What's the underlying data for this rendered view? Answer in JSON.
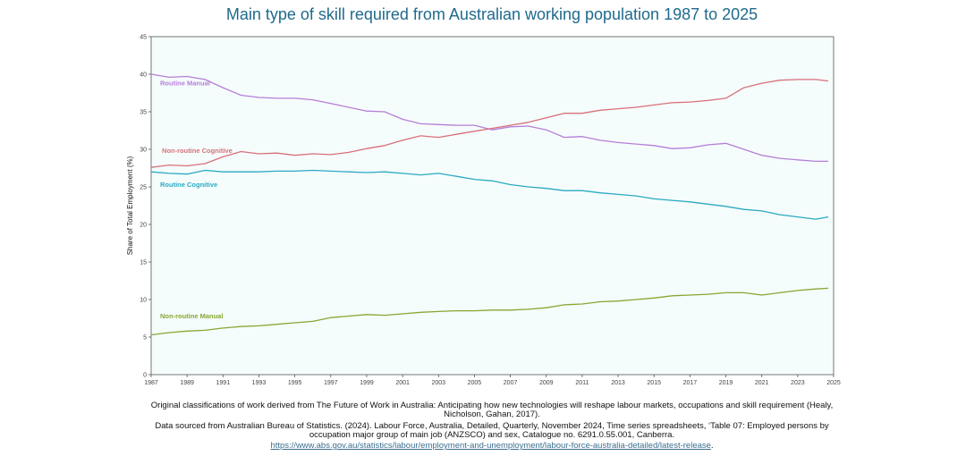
{
  "chart_data": {
    "type": "line",
    "title": "Main type of skill required from Australian working population 1987 to 2025",
    "xlabel": "",
    "ylabel": "Share of Total Employment (%)",
    "xlim": [
      1987,
      2025
    ],
    "ylim": [
      0,
      45
    ],
    "xticks": [
      "1987",
      "1989",
      "1991",
      "1993",
      "1995",
      "1997",
      "1999",
      "2001",
      "2003",
      "2005",
      "2007",
      "2009",
      "2011",
      "2013",
      "2015",
      "2017",
      "2019",
      "2021",
      "2023",
      "2025"
    ],
    "yticks": [
      "0",
      "5",
      "10",
      "15",
      "20",
      "25",
      "30",
      "35",
      "40",
      "45"
    ],
    "x": [
      1987,
      1988,
      1989,
      1990,
      1991,
      1992,
      1993,
      1994,
      1995,
      1996,
      1997,
      1998,
      1999,
      2000,
      2001,
      2002,
      2003,
      2004,
      2005,
      2006,
      2007,
      2008,
      2009,
      2010,
      2011,
      2012,
      2013,
      2014,
      2015,
      2016,
      2017,
      2018,
      2019,
      2020,
      2021,
      2022,
      2023,
      2024,
      2024.7
    ],
    "series": [
      {
        "name": "Routine Manual",
        "color": "#b57fd6",
        "values": [
          40.0,
          39.6,
          39.7,
          39.3,
          38.2,
          37.2,
          36.9,
          36.8,
          36.8,
          36.6,
          36.1,
          35.6,
          35.1,
          35.0,
          34.0,
          33.4,
          33.3,
          33.2,
          33.2,
          32.6,
          33.0,
          33.1,
          32.6,
          31.6,
          31.7,
          31.2,
          30.9,
          30.7,
          30.5,
          30.1,
          30.2,
          30.6,
          30.8,
          30.0,
          29.2,
          28.8,
          28.6,
          28.4,
          28.4
        ]
      },
      {
        "name": "Non-routine Cognitive",
        "color": "#d9707a",
        "values": [
          27.6,
          27.9,
          27.8,
          28.1,
          29.0,
          29.7,
          29.4,
          29.5,
          29.2,
          29.4,
          29.3,
          29.6,
          30.1,
          30.5,
          31.2,
          31.8,
          31.6,
          32.0,
          32.4,
          32.8,
          33.2,
          33.6,
          34.2,
          34.8,
          34.8,
          35.2,
          35.4,
          35.6,
          35.9,
          36.2,
          36.3,
          36.5,
          36.8,
          38.2,
          38.8,
          39.2,
          39.3,
          39.3,
          39.1
        ]
      },
      {
        "name": "Routine Cognitive",
        "color": "#2aaac2",
        "values": [
          27.0,
          26.8,
          26.7,
          27.2,
          27.0,
          27.0,
          27.0,
          27.1,
          27.1,
          27.2,
          27.1,
          27.0,
          26.9,
          27.0,
          26.8,
          26.6,
          26.8,
          26.4,
          26.0,
          25.8,
          25.3,
          25.0,
          24.8,
          24.5,
          24.5,
          24.2,
          24.0,
          23.8,
          23.4,
          23.2,
          23.0,
          22.7,
          22.4,
          22.0,
          21.8,
          21.3,
          21.0,
          20.7,
          21.0
        ]
      },
      {
        "name": "Non-routine Manual",
        "color": "#86a832",
        "values": [
          5.3,
          5.6,
          5.8,
          5.9,
          6.2,
          6.4,
          6.5,
          6.7,
          6.9,
          7.1,
          7.6,
          7.8,
          8.0,
          7.9,
          8.1,
          8.3,
          8.4,
          8.5,
          8.5,
          8.6,
          8.6,
          8.7,
          8.9,
          9.3,
          9.4,
          9.7,
          9.8,
          10.0,
          10.2,
          10.5,
          10.6,
          10.7,
          10.9,
          10.9,
          10.6,
          10.9,
          11.2,
          11.4,
          11.5
        ]
      }
    ],
    "series_labels": [
      {
        "name": "Routine Manual",
        "x": 1987.3,
        "y": 38.5
      },
      {
        "name": "Non-routine Cognitive",
        "x": 1987.4,
        "y": 29.5
      },
      {
        "name": "Routine Cognitive",
        "x": 1987.3,
        "y": 25.0
      },
      {
        "name": "Non-routine Manual",
        "x": 1987.3,
        "y": 7.5
      }
    ],
    "grid": false,
    "legend": "inline labels"
  },
  "captions": {
    "line1": "Original classifications of work derived from  The Future of Work in Australia: Anticipating how new technologies will reshape labour markets, occupations and skill requirement (Healy, Nicholson, Gahan, 2017).",
    "line2": "Data sourced from Australian Bureau of Statistics. (2024). Labour Force, Australia, Detailed, Quarterly, November 2024,  Time series spreadsheets, ‘Table 07: Employed persons by occupation major group of main job (ANZSCO) and sex, Catalogue no. 6291.0.55.001, Canberra.",
    "link": "https://www.abs.gov.au/statistics/labour/employment-and-unemployment/labour-force-australia-detailed/latest-release",
    "link_suffix": "."
  }
}
